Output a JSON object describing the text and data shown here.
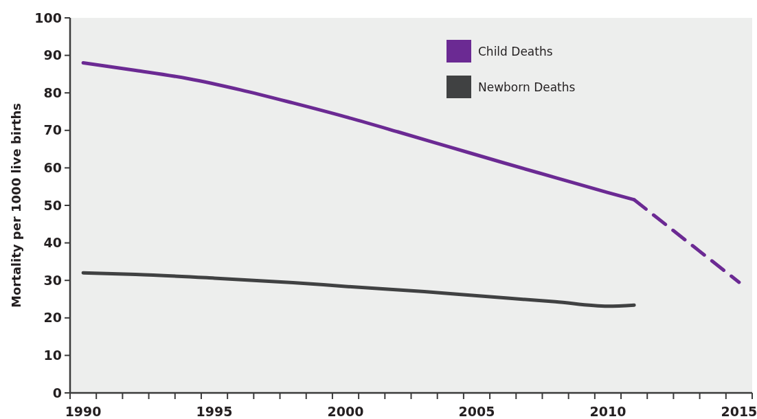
{
  "chart_data": {
    "type": "line",
    "ylabel": "Mortality per 1000 live births",
    "xlim": [
      1989.5,
      2015.5
    ],
    "xticks": [
      {
        "value": 1989.5,
        "label": null
      },
      {
        "value": 1990,
        "label": "1990"
      },
      {
        "value": 1990.5,
        "label": null
      },
      {
        "value": 1991.5,
        "label": null
      },
      {
        "value": 1992.5,
        "label": null
      },
      {
        "value": 1993.5,
        "label": null
      },
      {
        "value": 1994.5,
        "label": null
      },
      {
        "value": 1995,
        "label": "1995"
      },
      {
        "value": 1995.5,
        "label": null
      },
      {
        "value": 1996.5,
        "label": null
      },
      {
        "value": 1997.5,
        "label": null
      },
      {
        "value": 1998.5,
        "label": null
      },
      {
        "value": 1999.5,
        "label": null
      },
      {
        "value": 2000,
        "label": "2000"
      },
      {
        "value": 2000.5,
        "label": null
      },
      {
        "value": 2001.5,
        "label": null
      },
      {
        "value": 2002.5,
        "label": null
      },
      {
        "value": 2003.5,
        "label": null
      },
      {
        "value": 2004.5,
        "label": null
      },
      {
        "value": 2005,
        "label": "2005"
      },
      {
        "value": 2005.5,
        "label": null
      },
      {
        "value": 2006.5,
        "label": null
      },
      {
        "value": 2007.5,
        "label": null
      },
      {
        "value": 2008.5,
        "label": null
      },
      {
        "value": 2009.5,
        "label": null
      },
      {
        "value": 2010,
        "label": "2010"
      },
      {
        "value": 2010.5,
        "label": null
      },
      {
        "value": 2011.5,
        "label": null
      },
      {
        "value": 2012.5,
        "label": null
      },
      {
        "value": 2013.5,
        "label": null
      },
      {
        "value": 2014.5,
        "label": null
      },
      {
        "value": 2015,
        "label": "2015"
      },
      {
        "value": 2015.5,
        "label": null
      }
    ],
    "ylim": [
      0,
      100
    ],
    "yticks": [
      0,
      10,
      20,
      30,
      40,
      50,
      60,
      70,
      80,
      90,
      100
    ],
    "legend": "top right",
    "grid": false,
    "series": [
      {
        "name": "Child Deaths",
        "color": "#6b2a93",
        "line_style": "solid",
        "x": [
          1990,
          1992,
          1994,
          1996,
          1998,
          2000,
          2002,
          2004,
          2006,
          2008,
          2010,
          2011
        ],
        "values": [
          88,
          86,
          83.8,
          80.8,
          77.3,
          73.6,
          69.6,
          65.5,
          61.4,
          57.4,
          53.4,
          51.5
        ]
      },
      {
        "color": "#6b2a93",
        "line_style": "dashed",
        "x": [
          2011,
          2015
        ],
        "values": [
          51.5,
          29.5
        ]
      },
      {
        "name": "Newborn Deaths",
        "color": "#404142",
        "line_style": "solid",
        "x": [
          1990,
          1992,
          1995,
          1998,
          2000,
          2003,
          2005,
          2008,
          2010,
          2011
        ],
        "values": [
          32,
          31.6,
          30.6,
          29.4,
          28.4,
          27,
          25.9,
          24.3,
          23.1,
          23.4
        ]
      }
    ]
  }
}
